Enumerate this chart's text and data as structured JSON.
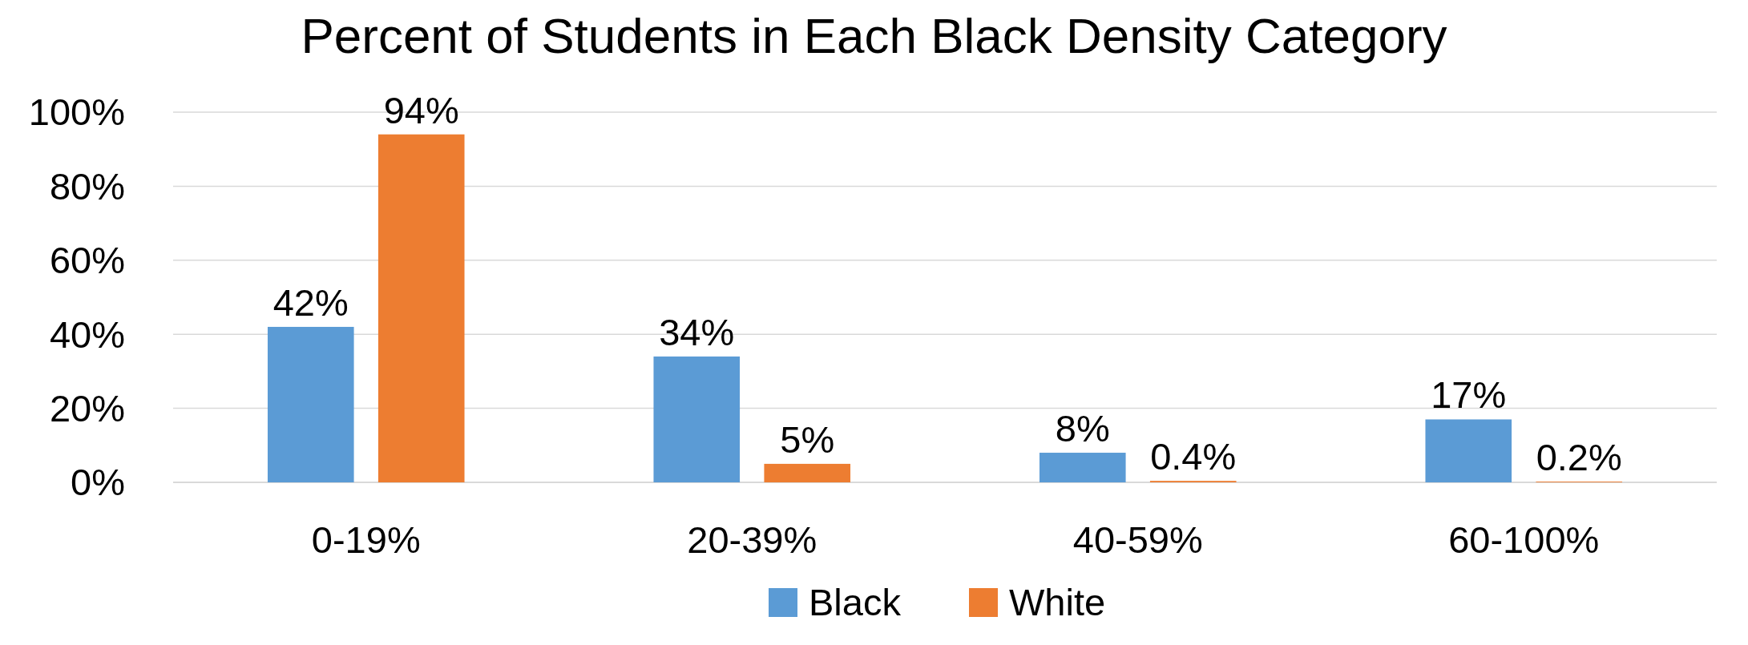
{
  "chart_data": {
    "type": "bar",
    "title": "Percent of Students in Each Black Density Category",
    "categories": [
      "0-19%",
      "20-39%",
      "40-59%",
      "60-100%"
    ],
    "series": [
      {
        "name": "Black",
        "color": "#5b9bd5",
        "values": [
          42,
          34,
          8,
          17
        ],
        "value_labels": [
          "42%",
          "34%",
          "8%",
          "17%"
        ]
      },
      {
        "name": "White",
        "color": "#ed7d31",
        "values": [
          94,
          5,
          0.4,
          0.2
        ],
        "value_labels": [
          "94%",
          "5%",
          "0.4%",
          "0.2%"
        ]
      }
    ],
    "ylim": [
      0,
      100
    ],
    "yticks": [
      {
        "value": 0,
        "label": "0%"
      },
      {
        "value": 20,
        "label": "20%"
      },
      {
        "value": 40,
        "label": "40%"
      },
      {
        "value": 60,
        "label": "60%"
      },
      {
        "value": 80,
        "label": "80%"
      },
      {
        "value": 100,
        "label": "100%"
      }
    ],
    "grid": "y",
    "legend": "bottom"
  }
}
